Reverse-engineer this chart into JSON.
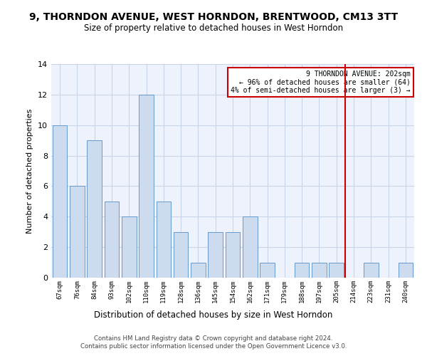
{
  "title": "9, THORNDON AVENUE, WEST HORNDON, BRENTWOOD, CM13 3TT",
  "subtitle": "Size of property relative to detached houses in West Horndon",
  "xlabel": "Distribution of detached houses by size in West Horndon",
  "ylabel": "Number of detached properties",
  "footer_line1": "Contains HM Land Registry data © Crown copyright and database right 2024.",
  "footer_line2": "Contains public sector information licensed under the Open Government Licence v3.0.",
  "categories": [
    "67sqm",
    "76sqm",
    "84sqm",
    "93sqm",
    "102sqm",
    "110sqm",
    "119sqm",
    "128sqm",
    "136sqm",
    "145sqm",
    "154sqm",
    "162sqm",
    "171sqm",
    "179sqm",
    "188sqm",
    "197sqm",
    "205sqm",
    "214sqm",
    "223sqm",
    "231sqm",
    "240sqm"
  ],
  "values": [
    10,
    6,
    9,
    5,
    4,
    12,
    5,
    3,
    1,
    3,
    3,
    4,
    1,
    0,
    1,
    1,
    1,
    0,
    1,
    0,
    1
  ],
  "bar_color": "#ccdcee",
  "bar_edge_color": "#6699cc",
  "grid_color": "#c8d4e8",
  "background_color": "#eef2fc",
  "vline_index": 16,
  "vline_color": "#cc0000",
  "annotation_line1": "9 THORNDON AVENUE: 202sqm",
  "annotation_line2": "← 96% of detached houses are smaller (64)",
  "annotation_line3": "4% of semi-detached houses are larger (3) →",
  "ylim_max": 14,
  "yticks": [
    0,
    2,
    4,
    6,
    8,
    10,
    12,
    14
  ]
}
